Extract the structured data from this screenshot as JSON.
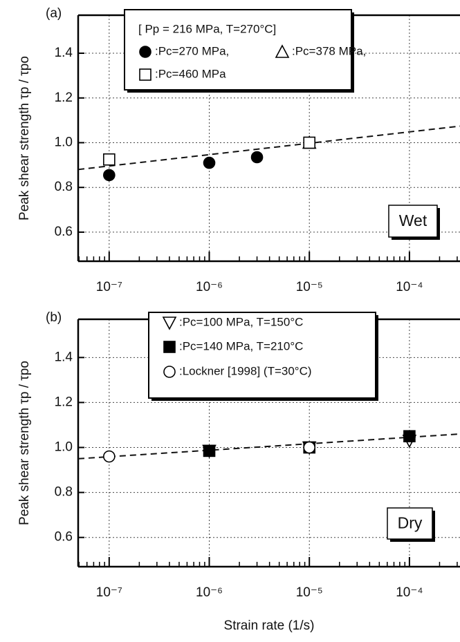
{
  "chart_data": [
    {
      "type": "scatter",
      "panel_label": "(a)",
      "annotation": "Wet",
      "ylabel": "Peak shear strength τp / τpo",
      "xscale": "log",
      "grid": true,
      "xlim": [
        4.9e-08,
        0.00032
      ],
      "ylim": [
        0.47,
        1.57
      ],
      "xticks": [
        {
          "value": 1e-07,
          "label": "10⁻⁷"
        },
        {
          "value": 1e-06,
          "label": "10⁻⁶"
        },
        {
          "value": 1e-05,
          "label": "10⁻⁵"
        },
        {
          "value": 0.0001,
          "label": "10⁻⁴"
        }
      ],
      "yticks": [
        0.6,
        0.8,
        {
          "value": 1.0,
          "label": "1.0"
        },
        1.2,
        1.4
      ],
      "legend_title": "[ Pp = 216 MPa, T=270°C]",
      "series": [
        {
          "name": ":Pc=270 MPa,",
          "marker": "circle",
          "filled": true,
          "color": "#000000",
          "x": [
            1e-07,
            1e-06,
            3e-06
          ],
          "values": [
            0.855,
            0.91,
            0.935
          ]
        },
        {
          "name": ":Pc=378 MPa,",
          "marker": "triangle",
          "filled": false,
          "color": "#000000",
          "x": [
            1e-05
          ],
          "values": [
            1.0
          ]
        },
        {
          "name": ":Pc=460 MPa",
          "marker": "square",
          "filled": false,
          "color": "#000000",
          "x": [
            1e-07,
            1e-05
          ],
          "values": [
            0.925,
            1.0
          ]
        }
      ],
      "fit": {
        "x": [
          4.9e-08,
          0.00032
        ],
        "values": [
          0.88,
          1.074
        ]
      }
    },
    {
      "type": "scatter",
      "panel_label": "(b)",
      "annotation": "Dry",
      "ylabel": "Peak shear strength τp / τpo",
      "xlabel": "Strain rate (1/s)",
      "xscale": "log",
      "grid": true,
      "xlim": [
        4.9e-08,
        0.00032
      ],
      "ylim": [
        0.47,
        1.57
      ],
      "xticks": [
        {
          "value": 1e-07,
          "label": "10⁻⁷"
        },
        {
          "value": 1e-06,
          "label": "10⁻⁶"
        },
        {
          "value": 1e-05,
          "label": "10⁻⁵"
        },
        {
          "value": 0.0001,
          "label": "10⁻⁴"
        }
      ],
      "yticks": [
        0.6,
        0.8,
        {
          "value": 1.0,
          "label": "1.0"
        },
        1.2,
        1.4
      ],
      "series": [
        {
          "name": ":Pc=100 MPa, T=150°C",
          "marker": "triangle-down",
          "filled": false,
          "color": "#000000",
          "x": [
            1e-06,
            1e-05,
            0.0001
          ],
          "values": [
            0.985,
            1.0,
            1.03
          ]
        },
        {
          "name": ":Pc=140 MPa, T=210°C",
          "marker": "square",
          "filled": true,
          "color": "#000000",
          "x": [
            1e-06,
            1e-05,
            0.0001
          ],
          "values": [
            0.985,
            1.0,
            1.05
          ]
        },
        {
          "name": ":Lockner [1998] (T=30°C)",
          "marker": "circle",
          "filled": false,
          "color": "#000000",
          "x": [
            1e-07,
            1e-05
          ],
          "values": [
            0.96,
            1.0
          ]
        }
      ],
      "fit": {
        "x": [
          4.9e-08,
          0.00032
        ],
        "values": [
          0.95,
          1.06
        ]
      }
    }
  ]
}
